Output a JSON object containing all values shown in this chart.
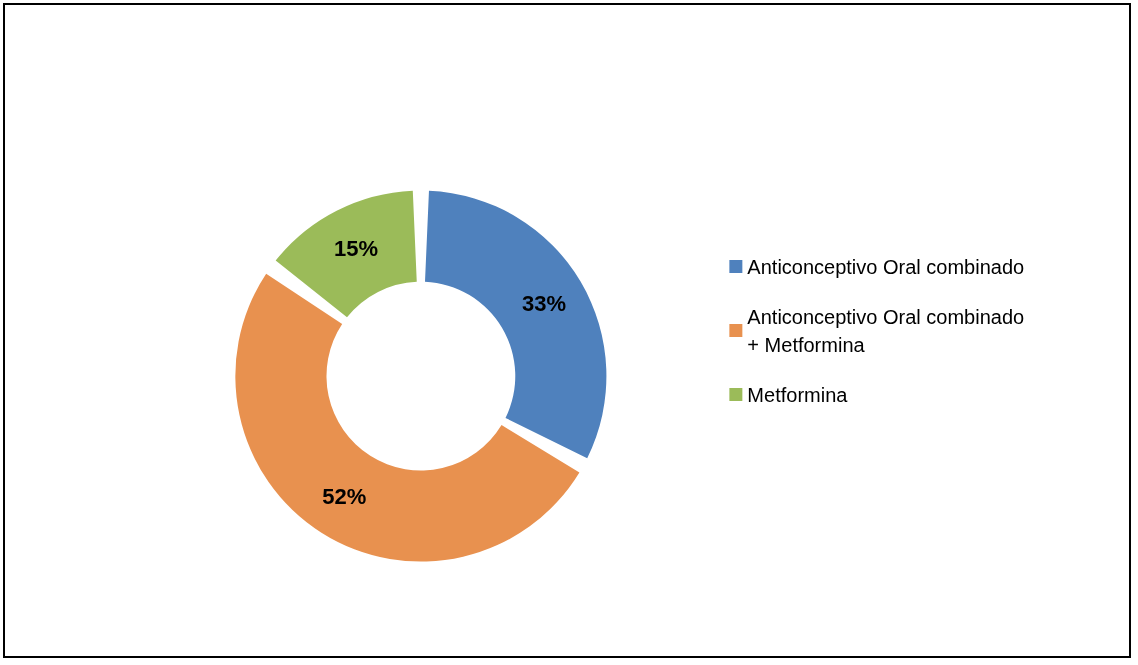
{
  "chart_data": {
    "type": "donut",
    "categories": [
      "Anticonceptivo Oral combinado",
      "Anticonceptivo Oral combinado + Metformina",
      "Metformina"
    ],
    "values": [
      33,
      52,
      15
    ],
    "value_labels": [
      "33%",
      "52%",
      "15%"
    ],
    "colors": [
      "#4f81bd",
      "#e8914f",
      "#9bbb59"
    ],
    "legend": "right"
  }
}
